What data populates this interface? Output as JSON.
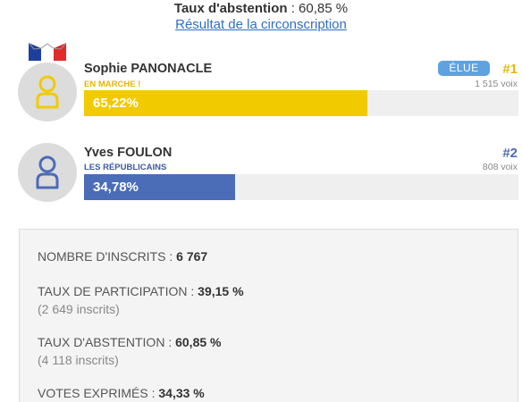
{
  "header": {
    "abstention_label": "Taux d'abstention",
    "abstention_sep": " : ",
    "abstention_value": "60,85 %",
    "link_text": "Résultat de la circonscription"
  },
  "candidates": [
    {
      "name": "Sophie PANONACLE",
      "party": "EN MARCHE !",
      "percent_label": "65,22%",
      "percent": 65.22,
      "rank": "#1",
      "votes": "1 515 voix",
      "badge": "ÉLUE",
      "color": "#f1ca00",
      "rank_color": "#e6b800",
      "party_color": "#e8b600",
      "icon": "person-icon"
    },
    {
      "name": "Yves FOULON",
      "party": "LES RÉPUBLICAINS",
      "percent_label": "34,78%",
      "percent": 34.78,
      "rank": "#2",
      "votes": "808 voix",
      "color": "#4b6cb7",
      "rank_color": "#4b6cb7",
      "party_color": "#3a5aa6",
      "icon": "person-icon"
    }
  ],
  "stats": {
    "inscrits_label": "NOMBRE D'INSCRITS : ",
    "inscrits_value": "6 767",
    "participation_label": "TAUX DE PARTICIPATION : ",
    "participation_value": "39,15 %",
    "participation_sub": "(2 649 inscrits)",
    "abstention_label": "TAUX D'ABSTENTION : ",
    "abstention_value": "60,85 %",
    "abstention_sub": "(4 118 inscrits)",
    "exprimes_label": "VOTES EXPRIMÉS : ",
    "exprimes_value": "34,33 %"
  }
}
